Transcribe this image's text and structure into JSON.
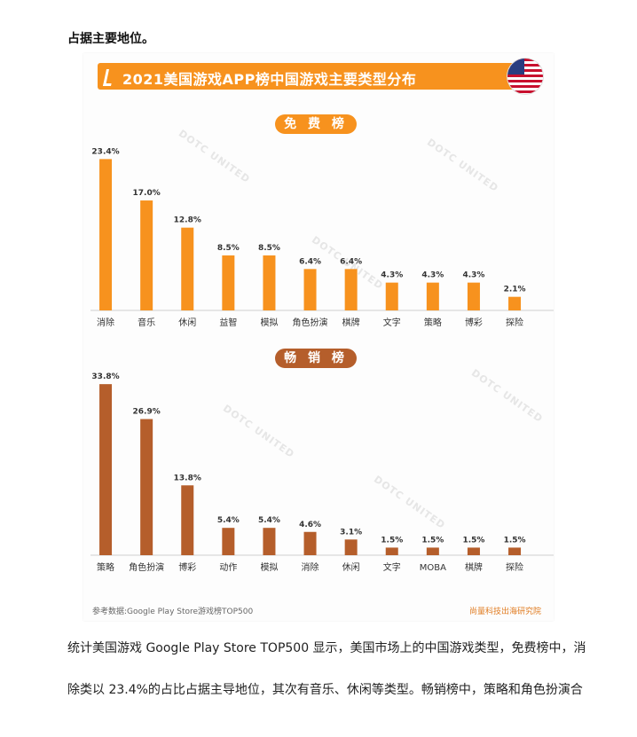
{
  "top_text": "占据主要地位。",
  "banner_title": "2021美国游戏APP榜中国游戏主要类型分布",
  "flag_icon": "us-flag-icon",
  "watermark_text": "DOTC UNITED",
  "source_note": "参考数据:Google Play Store游戏榜TOP500",
  "brand_note": "尚量科技出海研究院",
  "paragraph_lines": [
    "统计美国游戏 Google Play Store TOP500 显示，美国市场上的中国游戏类型，免费榜中，消",
    "除类以 23.4%的占比占据主导地位，其次有音乐、休闲等类型。畅销榜中，策略和角色扮演合"
  ],
  "colors": {
    "free_bar": "#f7921e",
    "sales_bar": "#b55e2b",
    "banner": "#f7921e"
  },
  "chart_data": [
    {
      "type": "bar",
      "title": "免 费 榜",
      "unit": "%",
      "categories": [
        "消除",
        "音乐",
        "休闲",
        "益智",
        "模拟",
        "角色扮演",
        "棋牌",
        "文字",
        "策略",
        "博彩",
        "探险"
      ],
      "values": [
        23.4,
        17.0,
        12.8,
        8.5,
        8.5,
        6.4,
        6.4,
        4.3,
        4.3,
        4.3,
        2.1
      ],
      "ylim": [
        0,
        24
      ],
      "grid": false
    },
    {
      "type": "bar",
      "title": "畅 销 榜",
      "unit": "%",
      "categories": [
        "策略",
        "角色扮演",
        "博彩",
        "动作",
        "模拟",
        "消除",
        "休闲",
        "文字",
        "MOBA",
        "棋牌",
        "探险"
      ],
      "values": [
        33.8,
        26.9,
        13.8,
        5.4,
        5.4,
        4.6,
        3.1,
        1.5,
        1.5,
        1.5,
        1.5
      ],
      "ylim": [
        0,
        34
      ],
      "grid": false
    }
  ]
}
